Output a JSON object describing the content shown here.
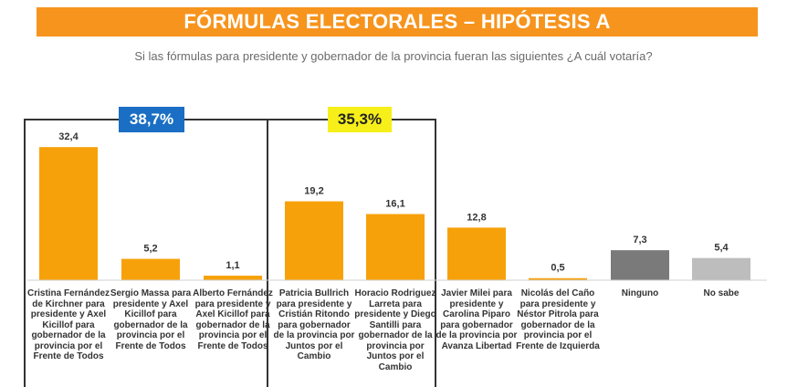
{
  "header": {
    "title": "FÓRMULAS ELECTORALES – HIPÓTESIS A",
    "subtitle": "Si las fórmulas para presidente y gobernador de la provincia fueran las siguientes ¿A cuál votaría?"
  },
  "groups": [
    {
      "value_label": "38,7%",
      "color": "#1a6fc4"
    },
    {
      "value_label": "35,3%",
      "color": "#f7ef1a"
    }
  ],
  "chart_data": {
    "type": "bar",
    "title": "FÓRMULAS ELECTORALES – HIPÓTESIS A",
    "subtitle": "Si las fórmulas para presidente y gobernador de la provincia fueran las siguientes ¿A cuál votaría?",
    "categories": [
      "Cristina Fernández de Kirchner para presidente y Axel Kicillof para gobernador de la provincia por el Frente de Todos",
      "Sergio Massa para presidente y Axel Kicillof para gobernador de la provincia por el Frente de Todos",
      "Alberto Fernández para presidente y Axel Kicillof para gobernador de la provincia por el Frente de Todos",
      "Patricia Bullrich para presidente y Cristián Ritondo para gobernador de la provincia por Juntos por el Cambio",
      "Horacio Rodriguez Larreta para presidente y Diego Santilli para gobernador de la provincia por Juntos por el Cambio",
      "Javier Milei para presidente y Carolina Piparo para gobernador de la provincia por Avanza Libertad",
      "Nicolás del Caño para presidente y Néstor Pitrola para gobernador de la provincia por el Frente de Izquierda",
      "Ninguno",
      "No sabe"
    ],
    "values": [
      32.4,
      5.2,
      1.1,
      19.2,
      16.1,
      12.8,
      0.5,
      7.3,
      5.4
    ],
    "value_labels": [
      "32,4",
      "5,2",
      "1,1",
      "19,2",
      "16,1",
      "12,8",
      "0,5",
      "7,3",
      "5,4"
    ],
    "colors": [
      "#f7a10a",
      "#f7a10a",
      "#f7a10a",
      "#f7a10a",
      "#f7a10a",
      "#f7a10a",
      "#f7a10a",
      "#7a7a7a",
      "#bdbdbd"
    ],
    "ylim": [
      0,
      36
    ],
    "grid": false,
    "legend": "none"
  }
}
